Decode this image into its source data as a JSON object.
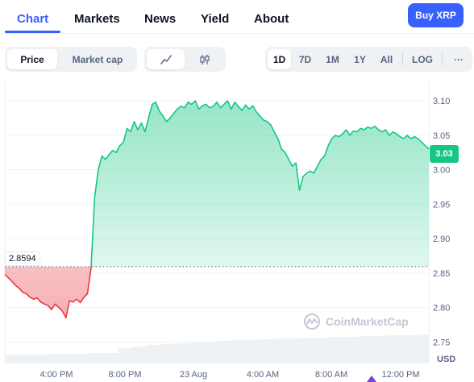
{
  "nav": {
    "tabs": [
      "Chart",
      "Markets",
      "News",
      "Yield",
      "About"
    ],
    "buy_label": "Buy XRP"
  },
  "controls": {
    "price_label": "Price",
    "marketcap_label": "Market cap",
    "ranges": [
      "1D",
      "7D",
      "1M",
      "1Y",
      "All"
    ],
    "log_label": "LOG",
    "more_label": "···",
    "icons": [
      "line-chart-icon",
      "candlestick-icon"
    ]
  },
  "colors": {
    "up": "#16c784",
    "down": "#ea3943",
    "accent": "#3861fb"
  },
  "chart_data": {
    "type": "area",
    "x_ticks": [
      "4:00 PM",
      "8:00 PM",
      "23 Aug",
      "4:00 AM",
      "8:00 AM",
      "12:00 PM"
    ],
    "y_ticks": [
      3.1,
      3.05,
      3.0,
      2.95,
      2.9,
      2.85,
      2.8,
      2.75
    ],
    "ylim": [
      2.72,
      3.12
    ],
    "reference_value": 2.8594,
    "reference_label": "2.8594",
    "current_label": "3.03",
    "currency_label": "USD",
    "watermark": "CoinMarketCap",
    "grid": "horizontal",
    "series": [
      {
        "values": [
          2.848,
          2.843,
          2.838,
          2.832,
          2.828,
          2.822,
          2.82,
          2.815,
          2.812,
          2.814,
          2.808,
          2.805,
          2.803,
          2.797,
          2.805,
          2.8,
          2.795,
          2.785,
          2.81,
          2.808,
          2.812,
          2.807,
          2.815,
          2.82,
          2.858,
          2.96,
          3.0,
          3.02,
          3.015,
          3.022,
          3.028,
          3.025,
          3.035,
          3.04,
          3.06,
          3.055,
          3.07,
          3.058,
          3.068,
          3.055,
          3.075,
          3.095,
          3.098,
          3.085,
          3.078,
          3.07,
          3.075,
          3.082,
          3.088,
          3.092,
          3.09,
          3.098,
          3.095,
          3.1,
          3.088,
          3.093,
          3.095,
          3.09,
          3.092,
          3.098,
          3.09,
          3.095,
          3.1,
          3.088,
          3.098,
          3.092,
          3.086,
          3.094,
          3.088,
          3.093,
          3.084,
          3.078,
          3.072,
          3.07,
          3.065,
          3.055,
          3.045,
          3.03,
          3.025,
          3.015,
          3.005,
          3.01,
          2.97,
          2.99,
          2.995,
          2.998,
          2.995,
          3.005,
          3.015,
          3.02,
          3.035,
          3.045,
          3.05,
          3.048,
          3.052,
          3.058,
          3.05,
          3.056,
          3.055,
          3.06,
          3.058,
          3.062,
          3.06,
          3.063,
          3.058,
          3.055,
          3.058,
          3.05,
          3.055,
          3.052,
          3.048,
          3.045,
          3.05,
          3.045,
          3.048,
          3.045,
          3.04,
          3.035,
          3.03
        ]
      }
    ],
    "volume": [
      0.1,
      0.1,
      0.1,
      0.11,
      0.11,
      0.11,
      0.12,
      0.12,
      0.18,
      0.2,
      0.22,
      0.23,
      0.24,
      0.25,
      0.26,
      0.27,
      0.28,
      0.28,
      0.29,
      0.3,
      0.3,
      0.31,
      0.31,
      0.32,
      0.32,
      0.33,
      0.33,
      0.34,
      0.34,
      0.35
    ]
  }
}
